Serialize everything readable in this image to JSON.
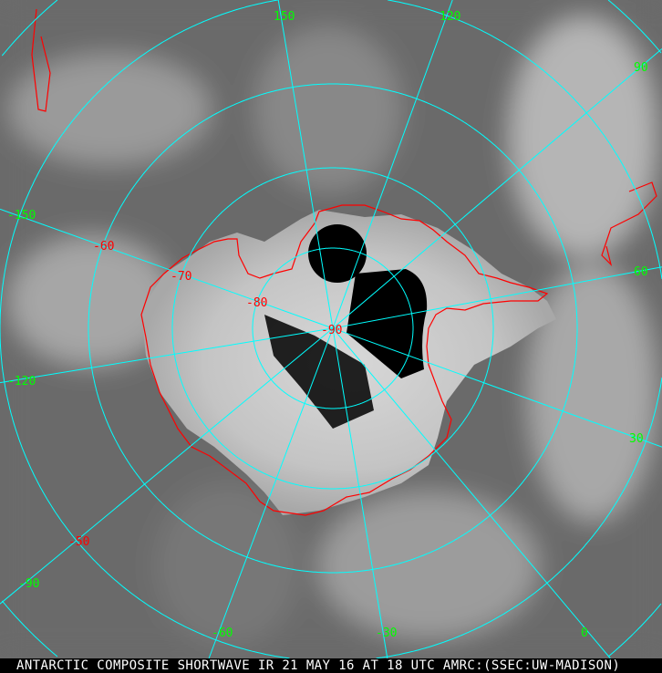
{
  "caption": "ANTARCTIC COMPOSITE SHORTWAVE IR 21 MAY 16 AT 18 UTC AMRC:(SSEC:UW-MADISON)",
  "colors": {
    "grid": "#00ffff",
    "coast": "#ff0000",
    "lon_label": "#00ff00",
    "lat_label": "#ff0000",
    "caption_bg": "#000000"
  },
  "longitude_labels": [
    "150",
    "120",
    "90",
    "60",
    "30",
    "0",
    "-30",
    "-60",
    "-90",
    "-120",
    "-150"
  ],
  "latitude_labels": [
    "-50",
    "-60",
    "-70",
    "-80",
    "-90"
  ]
}
